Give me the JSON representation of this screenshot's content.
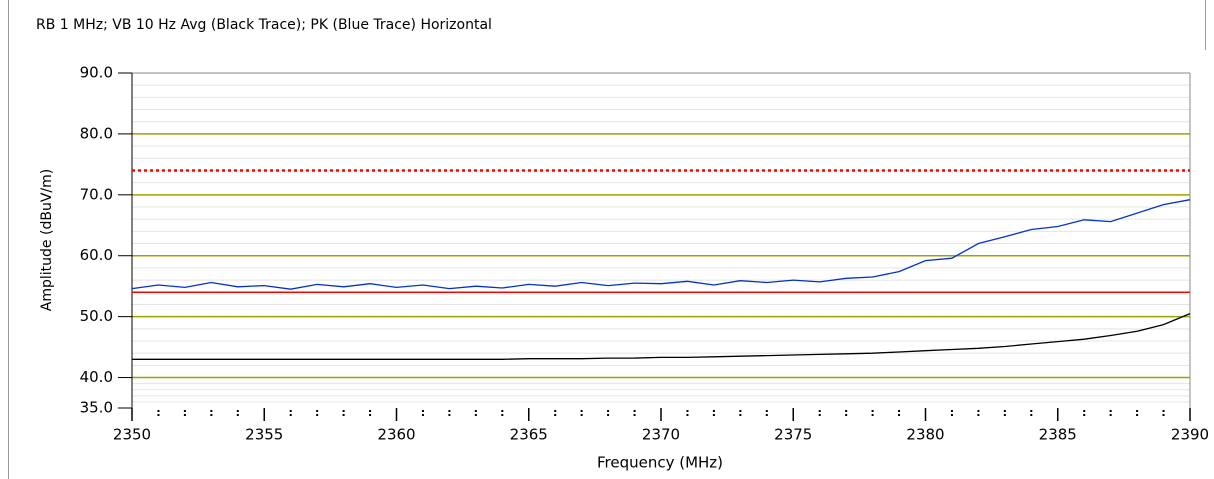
{
  "chart_data": {
    "type": "line",
    "title": "RB 1 MHz; VB 10 Hz Avg (Black Trace); PK (Blue Trace) Horizontal",
    "xlabel": "Frequency (MHz)",
    "ylabel": "Amplitude (dBuV/m)",
    "xlim": [
      2350,
      2390
    ],
    "ylim": [
      35,
      90
    ],
    "xticks": [
      2350,
      2355,
      2360,
      2365,
      2370,
      2375,
      2380,
      2385,
      2390
    ],
    "yticks": [
      {
        "value": 35,
        "label": "35.0"
      },
      {
        "value": 40,
        "label": "40.0"
      },
      {
        "value": 50,
        "label": "50.0"
      },
      {
        "value": 60,
        "label": "60.0"
      },
      {
        "value": 70,
        "label": "70.0"
      },
      {
        "value": 80,
        "label": "80.0"
      },
      {
        "value": 90,
        "label": "90.0"
      }
    ],
    "grid": true,
    "grid_color": "#a0a000",
    "minor_grid": true,
    "x": [
      2350,
      2351,
      2352,
      2353,
      2354,
      2355,
      2356,
      2357,
      2358,
      2359,
      2360,
      2361,
      2362,
      2363,
      2364,
      2365,
      2366,
      2367,
      2368,
      2369,
      2370,
      2371,
      2372,
      2373,
      2374,
      2375,
      2376,
      2377,
      2378,
      2379,
      2380,
      2381,
      2382,
      2383,
      2384,
      2385,
      2386,
      2387,
      2388,
      2389,
      2390
    ],
    "series": [
      {
        "color": "#0033cc",
        "values": [
          54.6,
          55.2,
          54.8,
          55.6,
          54.9,
          55.1,
          54.5,
          55.3,
          54.9,
          55.4,
          54.8,
          55.2,
          54.6,
          55.0,
          54.7,
          55.3,
          55.0,
          55.6,
          55.1,
          55.5,
          55.4,
          55.8,
          55.2,
          55.9,
          55.6,
          56.0,
          55.7,
          56.3,
          56.5,
          57.4,
          59.2,
          59.6,
          62.0,
          63.1,
          64.3,
          64.8,
          65.9,
          65.6,
          67.0,
          68.4,
          69.2
        ]
      },
      {
        "color": "#000000",
        "values": [
          43.0,
          43.0,
          43.0,
          43.0,
          43.0,
          43.0,
          43.0,
          43.0,
          43.0,
          43.0,
          43.0,
          43.0,
          43.0,
          43.0,
          43.0,
          43.1,
          43.1,
          43.1,
          43.2,
          43.2,
          43.3,
          43.3,
          43.4,
          43.5,
          43.6,
          43.7,
          43.8,
          43.9,
          44.0,
          44.2,
          44.4,
          44.6,
          44.8,
          45.1,
          45.5,
          45.9,
          46.3,
          46.9,
          47.6,
          48.7,
          50.5
        ]
      }
    ],
    "limit_lines": [
      {
        "value": 74,
        "color": "#ff0000",
        "style": "dotted"
      },
      {
        "value": 54,
        "color": "#ff0000",
        "style": "solid"
      }
    ]
  }
}
